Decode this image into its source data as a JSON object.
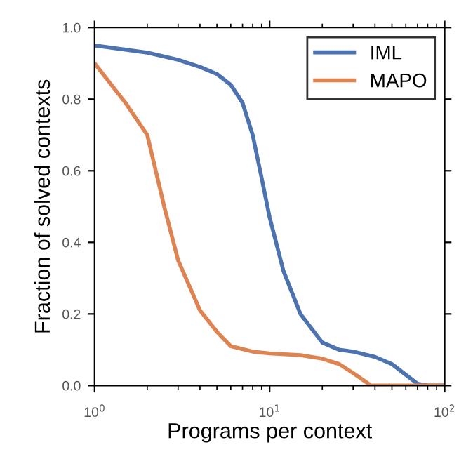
{
  "chart_data": {
    "type": "line",
    "xlabel": "Programs per context",
    "ylabel": "Fraction of solved contexts",
    "log": "x",
    "xlim": [
      1,
      100
    ],
    "xticks": [
      {
        "value": 1,
        "label": "10$^{0}$"
      },
      {
        "value": 10,
        "label": "10$^{1}$"
      },
      {
        "value": 100,
        "label": "10$^{2}$"
      }
    ],
    "ylim": [
      0,
      1
    ],
    "yticks": [
      {
        "value": 0,
        "label": "0.0"
      },
      0.2,
      0.4,
      0.6,
      0.8,
      {
        "value": 1,
        "label": "1.0"
      }
    ],
    "grid": false,
    "legend": "top right",
    "marker": "none",
    "line_style": "solid",
    "series": [
      {
        "name": "IML",
        "color": "#4c72b0",
        "x": [
          1,
          2,
          3,
          4,
          5,
          6,
          7,
          8,
          9,
          10,
          12,
          15,
          20,
          25,
          30,
          40,
          50,
          60,
          70,
          80,
          100
        ],
        "values": [
          0.95,
          0.93,
          0.91,
          0.89,
          0.87,
          0.84,
          0.79,
          0.7,
          0.58,
          0.47,
          0.32,
          0.2,
          0.12,
          0.1,
          0.095,
          0.08,
          0.06,
          0.03,
          0.005,
          0,
          0
        ]
      },
      {
        "name": "MAPO",
        "color": "#dd8452",
        "x": [
          1,
          1.5,
          2,
          2.5,
          3,
          4,
          5,
          6,
          8,
          10,
          15,
          20,
          25,
          30,
          38,
          50,
          100
        ],
        "values": [
          0.9,
          0.79,
          0.7,
          0.5,
          0.35,
          0.21,
          0.15,
          0.11,
          0.095,
          0.09,
          0.085,
          0.075,
          0.06,
          0.035,
          0,
          0,
          0
        ]
      }
    ]
  }
}
